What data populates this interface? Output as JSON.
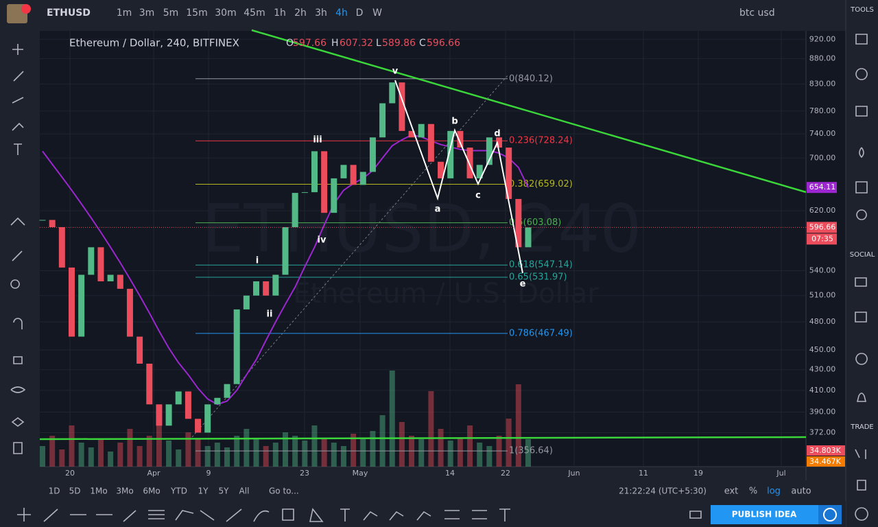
{
  "header": {
    "symbol": "ETHUSD",
    "intervals": [
      "1m",
      "3m",
      "5m",
      "15m",
      "30m",
      "45m",
      "1h",
      "2h",
      "3h",
      "4h",
      "D",
      "W"
    ],
    "symbol_search": "btc usd"
  },
  "sidebar": {
    "tools": "TOOLS",
    "social": "SOCIAL",
    "trade": "TRADE"
  },
  "chart_data": {
    "type": "candlestick",
    "title": "Ethereum / Dollar, 240, BITFINEX",
    "ohlc": [
      {
        "label": "O",
        "value": 597.66
      },
      {
        "label": "H",
        "value": 607.32
      },
      {
        "label": "L",
        "value": 589.86
      },
      {
        "label": "C",
        "value": 596.66
      }
    ],
    "watermark": [
      "ETHUSD, 240",
      "Ethereum / U.S. Dollar"
    ],
    "close": [
      607,
      597,
      544,
      464,
      535,
      570,
      527,
      535,
      518,
      464,
      436,
      397,
      378,
      397,
      409,
      384,
      372,
      397,
      403,
      416,
      494,
      510,
      527,
      510,
      535,
      597,
      646,
      647,
      711,
      617,
      668,
      689,
      658,
      678,
      734,
      794,
      833,
      745,
      734,
      757,
      694,
      668,
      745,
      717,
      668,
      689,
      734,
      717,
      637,
      570,
      596.66
    ],
    "ma": [
      711,
      690,
      670,
      650,
      630,
      610,
      590,
      570,
      550,
      530,
      510,
      490,
      470,
      452,
      437,
      425,
      412,
      402,
      397,
      400,
      410,
      425,
      440,
      460,
      480,
      500,
      520,
      545,
      570,
      600,
      630,
      650,
      660,
      668,
      680,
      700,
      720,
      730,
      738,
      735,
      728,
      722,
      718,
      714,
      712,
      712,
      712,
      708,
      700,
      685,
      654.11
    ],
    "volume": [
      30,
      45,
      25,
      60,
      35,
      28,
      40,
      22,
      35,
      55,
      30,
      45,
      70,
      38,
      25,
      50,
      40,
      30,
      35,
      28,
      45,
      55,
      40,
      30,
      35,
      50,
      45,
      38,
      60,
      42,
      35,
      30,
      48,
      40,
      52,
      75,
      140,
      65,
      45,
      40,
      110,
      55,
      38,
      42,
      60,
      35,
      30,
      45,
      70,
      120,
      40
    ],
    "volume_ylim": [
      0,
      160
    ],
    "volume_labels": [
      "34.803K",
      "34.467K"
    ],
    "up_color": "#53b987",
    "down_color": "#eb4d5c",
    "ma_color": "#9c27d0",
    "ylim": [
      938,
      344
    ],
    "log_scale": true,
    "yticks": [
      {
        "value": 920,
        "label": "920.00"
      },
      {
        "value": 880,
        "label": "880.00"
      },
      {
        "value": 830,
        "label": "830.00"
      },
      {
        "value": 780,
        "label": "780.00"
      },
      {
        "value": 740,
        "label": "740.00"
      },
      {
        "value": 700,
        "label": "700.00"
      },
      {
        "value": 620,
        "label": "620.00"
      },
      {
        "value": 540,
        "label": "540.00"
      },
      {
        "value": 510,
        "label": "510.00"
      },
      {
        "value": 480,
        "label": "480.00"
      },
      {
        "value": 450,
        "label": "450.00"
      },
      {
        "value": 430,
        "label": "430.00"
      },
      {
        "value": 410,
        "label": "410.00"
      },
      {
        "value": 390,
        "label": "390.00"
      },
      {
        "value": 372,
        "label": "372.00"
      }
    ],
    "x_labels": [
      "20",
      "Apr",
      "9",
      "23",
      "May",
      "14",
      "22",
      "Jun",
      "11",
      "19",
      "Jul"
    ],
    "countdown": "07:35",
    "fib_levels": [
      {
        "value": 840.12,
        "label": "0(840.12)",
        "color": "#9598a1"
      },
      {
        "value": 728.24,
        "label": "0.236(728.24)",
        "color": "#f23645"
      },
      {
        "value": 659.02,
        "label": "0.382(659.02)",
        "color": "#b5b820"
      },
      {
        "value": 603.08,
        "label": "0.5(603.08)",
        "color": "#4caf50"
      },
      {
        "value": 547.14,
        "label": "0.618(547.14)",
        "color": "#26a69a"
      },
      {
        "value": 531.97,
        "label": "0.65(531.97)",
        "color": "#26a69a"
      },
      {
        "value": 467.49,
        "label": "0.786(467.49)",
        "color": "#2196f3"
      },
      {
        "value": 356.64,
        "label": "1(356.64)",
        "color": "#9598a1"
      }
    ],
    "waves": [
      "v",
      "iii",
      "i",
      "ii",
      "iv",
      "a",
      "b",
      "c",
      "d",
      "e"
    ]
  },
  "footer": {
    "ranges": [
      "1D",
      "5D",
      "1Mo",
      "3Mo",
      "6Mo",
      "YTD",
      "1Y",
      "5Y",
      "All"
    ],
    "goto": "Go to...",
    "time": "21:22:24 (UTC+5:30)",
    "scales": [
      "ext",
      "%",
      "log",
      "auto"
    ],
    "publish": "PUBLISH IDEA"
  }
}
